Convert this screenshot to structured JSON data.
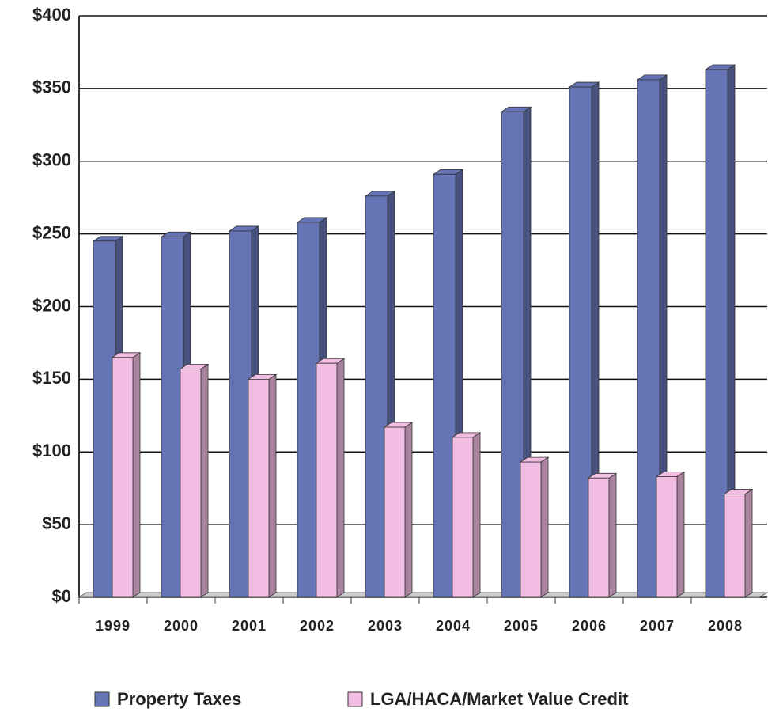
{
  "chart_data": {
    "type": "bar",
    "categories": [
      "1999",
      "2000",
      "2001",
      "2002",
      "2003",
      "2004",
      "2005",
      "2006",
      "2007",
      "2008"
    ],
    "series": [
      {
        "name": "Property Taxes",
        "color": "#6474b4",
        "values": [
          245,
          248,
          252,
          258,
          276,
          291,
          334,
          351,
          356,
          363
        ]
      },
      {
        "name": "LGA/HACA/Market Value Credit",
        "color": "#f2bde2",
        "values": [
          165,
          157,
          150,
          161,
          117,
          110,
          93,
          82,
          83,
          71
        ]
      }
    ],
    "ylim": [
      0,
      400
    ],
    "yticks": [
      {
        "value": 0,
        "label": "$0"
      },
      {
        "value": 50,
        "label": "$50"
      },
      {
        "value": 100,
        "label": "$100"
      },
      {
        "value": 150,
        "label": "$150"
      },
      {
        "value": 200,
        "label": "$200"
      },
      {
        "value": 250,
        "label": "$250"
      },
      {
        "value": 300,
        "label": "$300"
      },
      {
        "value": 350,
        "label": "$350"
      },
      {
        "value": 400,
        "label": "$400"
      }
    ],
    "grid": true,
    "legend": "bottom"
  }
}
